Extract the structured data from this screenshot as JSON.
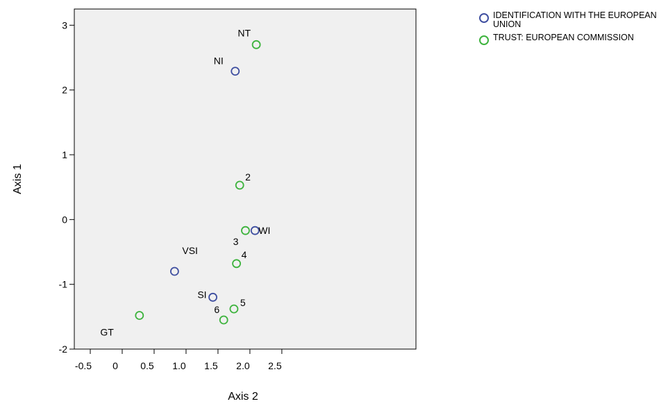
{
  "chart_data": {
    "type": "scatter",
    "xlabel": "Axis 2",
    "ylabel": "Axis 1",
    "xlim": [
      -0.75,
      4.6
    ],
    "ylim": [
      -2,
      3.25
    ],
    "xticks": [
      -0.5,
      0,
      0.5,
      1.0,
      1.5,
      2.0,
      2.5
    ],
    "xtick_labels": [
      "-0.5",
      "0",
      "0.5",
      "1.0",
      "1.5",
      "2.0",
      "2.5"
    ],
    "yticks": [
      -2,
      -1,
      0,
      1,
      2,
      3
    ],
    "ytick_labels": [
      "-2",
      "-1",
      "0",
      "1",
      "2",
      "3"
    ],
    "grid": false,
    "legend_position": "top-right, outside plot",
    "series": [
      {
        "name": "IDENTIFICATION WITH THE EUROPEAN UNION",
        "color": "#3f4fa0",
        "points": [
          {
            "label": "NI",
            "x": 1.77,
            "y": 2.29
          },
          {
            "label": "WI",
            "x": 2.08,
            "y": -0.17
          },
          {
            "label": "VSI",
            "x": 0.82,
            "y": -0.8
          },
          {
            "label": "SI",
            "x": 1.42,
            "y": -1.2
          }
        ]
      },
      {
        "name": "TRUST: EUROPEAN COMMISSION",
        "color": "#3db33d",
        "points": [
          {
            "label": "NT",
            "x": 2.1,
            "y": 2.7
          },
          {
            "label": "2",
            "x": 1.84,
            "y": 0.53
          },
          {
            "label": "3",
            "x": 1.93,
            "y": -0.17
          },
          {
            "label": "4",
            "x": 1.79,
            "y": -0.68
          },
          {
            "label": "5",
            "x": 1.75,
            "y": -1.38
          },
          {
            "label": "6",
            "x": 1.59,
            "y": -1.55
          },
          {
            "label": "GT",
            "x": 0.27,
            "y": -1.48
          }
        ]
      }
    ]
  }
}
